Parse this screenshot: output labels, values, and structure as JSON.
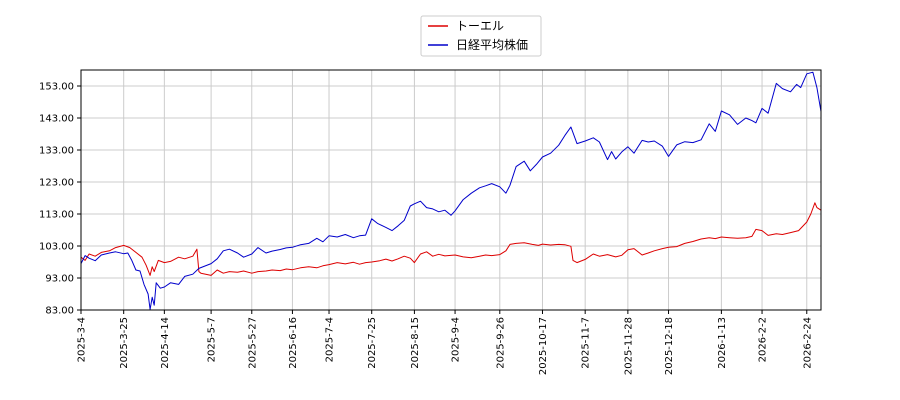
{
  "chart_data": {
    "type": "line",
    "title": "",
    "xlabel": "",
    "ylabel": "",
    "ylim": [
      83,
      158
    ],
    "yticks": [
      "83.00",
      "93.00",
      "103.00",
      "113.00",
      "123.00",
      "133.00",
      "143.00",
      "153.00"
    ],
    "xticks": [
      "2025-3-4",
      "2025-3-25",
      "2025-4-14",
      "2025-5-7",
      "2025-5-27",
      "2025-6-16",
      "2025-7-4",
      "2025-7-25",
      "2025-8-15",
      "2025-9-4",
      "2025-9-26",
      "2025-10-17",
      "2025-11-7",
      "2025-11-28",
      "2025-12-18",
      "2026-1-13",
      "2026-2-2",
      "2026-2-24"
    ],
    "x_range": [
      "2025-3-4",
      "2026-3-3"
    ],
    "grid": true,
    "legend_position": "top-center",
    "series": [
      {
        "name": "トーエル",
        "color": "#dd0000",
        "points": [
          [
            "2025-3-4",
            99.5
          ],
          [
            "2025-3-6",
            98.5
          ],
          [
            "2025-3-8",
            100.5
          ],
          [
            "2025-3-11",
            99.8
          ],
          [
            "2025-3-14",
            101.0
          ],
          [
            "2025-3-18",
            101.5
          ],
          [
            "2025-3-21",
            102.5
          ],
          [
            "2025-3-25",
            103.2
          ],
          [
            "2025-3-28",
            102.5
          ],
          [
            "2025-3-31",
            101.0
          ],
          [
            "2025-4-3",
            99.5
          ],
          [
            "2025-4-5",
            97.0
          ],
          [
            "2025-4-7",
            93.8
          ],
          [
            "2025-4-8",
            96.5
          ],
          [
            "2025-4-9",
            95.0
          ],
          [
            "2025-4-11",
            98.5
          ],
          [
            "2025-4-14",
            97.8
          ],
          [
            "2025-4-17",
            98.2
          ],
          [
            "2025-4-21",
            99.5
          ],
          [
            "2025-4-24",
            99.0
          ],
          [
            "2025-4-28",
            99.8
          ],
          [
            "2025-4-30",
            102.0
          ],
          [
            "2025-5-1",
            95.0
          ],
          [
            "2025-5-2",
            94.5
          ],
          [
            "2025-5-7",
            93.8
          ],
          [
            "2025-5-10",
            95.5
          ],
          [
            "2025-5-13",
            94.5
          ],
          [
            "2025-5-16",
            95.0
          ],
          [
            "2025-5-20",
            94.8
          ],
          [
            "2025-5-23",
            95.2
          ],
          [
            "2025-5-27",
            94.5
          ],
          [
            "2025-5-30",
            95.0
          ],
          [
            "2025-6-3",
            95.2
          ],
          [
            "2025-6-6",
            95.5
          ],
          [
            "2025-6-10",
            95.3
          ],
          [
            "2025-6-13",
            95.8
          ],
          [
            "2025-6-16",
            95.6
          ],
          [
            "2025-6-20",
            96.2
          ],
          [
            "2025-6-24",
            96.5
          ],
          [
            "2025-6-28",
            96.2
          ],
          [
            "2025-7-1",
            96.8
          ],
          [
            "2025-7-4",
            97.2
          ],
          [
            "2025-7-8",
            97.8
          ],
          [
            "2025-7-12",
            97.4
          ],
          [
            "2025-7-16",
            97.9
          ],
          [
            "2025-7-19",
            97.3
          ],
          [
            "2025-7-22",
            97.8
          ],
          [
            "2025-7-25",
            98.0
          ],
          [
            "2025-7-29",
            98.4
          ],
          [
            "2025-8-1",
            98.9
          ],
          [
            "2025-8-4",
            98.3
          ],
          [
            "2025-8-7",
            99.0
          ],
          [
            "2025-8-10",
            99.8
          ],
          [
            "2025-8-13",
            99.2
          ],
          [
            "2025-8-15",
            97.8
          ],
          [
            "2025-8-18",
            100.5
          ],
          [
            "2025-8-21",
            101.2
          ],
          [
            "2025-8-24",
            99.8
          ],
          [
            "2025-8-27",
            100.4
          ],
          [
            "2025-8-30",
            99.9
          ],
          [
            "2025-9-4",
            100.2
          ],
          [
            "2025-9-8",
            99.6
          ],
          [
            "2025-9-12",
            99.3
          ],
          [
            "2025-9-16",
            99.8
          ],
          [
            "2025-9-19",
            100.2
          ],
          [
            "2025-9-22",
            100.0
          ],
          [
            "2025-9-26",
            100.3
          ],
          [
            "2025-9-29",
            101.5
          ],
          [
            "2025-10-1",
            103.5
          ],
          [
            "2025-10-4",
            103.8
          ],
          [
            "2025-10-8",
            104.0
          ],
          [
            "2025-10-12",
            103.5
          ],
          [
            "2025-10-15",
            103.2
          ],
          [
            "2025-10-17",
            103.6
          ],
          [
            "2025-10-21",
            103.3
          ],
          [
            "2025-10-25",
            103.5
          ],
          [
            "2025-10-28",
            103.4
          ],
          [
            "2025-10-31",
            102.9
          ],
          [
            "2025-11-1",
            98.5
          ],
          [
            "2025-11-3",
            97.8
          ],
          [
            "2025-11-7",
            98.8
          ],
          [
            "2025-11-11",
            100.5
          ],
          [
            "2025-11-14",
            99.8
          ],
          [
            "2025-11-18",
            100.3
          ],
          [
            "2025-11-22",
            99.6
          ],
          [
            "2025-11-25",
            100.1
          ],
          [
            "2025-11-28",
            101.8
          ],
          [
            "2025-12-1",
            102.2
          ],
          [
            "2025-12-5",
            100.2
          ],
          [
            "2025-12-8",
            100.8
          ],
          [
            "2025-12-11",
            101.5
          ],
          [
            "2025-12-15",
            102.2
          ],
          [
            "2025-12-18",
            102.6
          ],
          [
            "2025-12-22",
            102.8
          ],
          [
            "2025-12-26",
            103.8
          ],
          [
            "2025-12-30",
            104.4
          ],
          [
            "2026-1-3",
            105.2
          ],
          [
            "2026-1-7",
            105.6
          ],
          [
            "2026-1-10",
            105.3
          ],
          [
            "2026-1-13",
            105.8
          ],
          [
            "2026-1-17",
            105.6
          ],
          [
            "2026-1-21",
            105.4
          ],
          [
            "2026-1-25",
            105.6
          ],
          [
            "2026-1-28",
            106.0
          ],
          [
            "2026-1-30",
            108.2
          ],
          [
            "2026-2-2",
            107.8
          ],
          [
            "2026-2-5",
            106.3
          ],
          [
            "2026-2-9",
            106.8
          ],
          [
            "2026-2-12",
            106.6
          ],
          [
            "2026-2-16",
            107.2
          ],
          [
            "2026-2-20",
            107.8
          ],
          [
            "2026-2-24",
            110.5
          ],
          [
            "2026-2-26",
            113.0
          ],
          [
            "2026-2-28",
            116.5
          ],
          [
            "2026-3-1",
            115.0
          ],
          [
            "2026-3-3",
            114.2
          ]
        ]
      },
      {
        "name": "日経平均株価",
        "color": "#0000cc",
        "points": [
          [
            "2025-3-4",
            97.5
          ],
          [
            "2025-3-6",
            100.0
          ],
          [
            "2025-3-8",
            99.2
          ],
          [
            "2025-3-11",
            98.4
          ],
          [
            "2025-3-14",
            100.2
          ],
          [
            "2025-3-18",
            100.8
          ],
          [
            "2025-3-21",
            101.2
          ],
          [
            "2025-3-25",
            100.6
          ],
          [
            "2025-3-27",
            100.8
          ],
          [
            "2025-3-29",
            98.5
          ],
          [
            "2025-3-31",
            95.5
          ],
          [
            "2025-4-2",
            95.2
          ],
          [
            "2025-4-4",
            91.0
          ],
          [
            "2025-4-6",
            88.0
          ],
          [
            "2025-4-7",
            83.2
          ],
          [
            "2025-4-8",
            87.0
          ],
          [
            "2025-4-9",
            84.5
          ],
          [
            "2025-4-10",
            91.5
          ],
          [
            "2025-4-12",
            89.8
          ],
          [
            "2025-4-14",
            90.2
          ],
          [
            "2025-4-17",
            91.5
          ],
          [
            "2025-4-21",
            91.0
          ],
          [
            "2025-4-24",
            93.5
          ],
          [
            "2025-4-28",
            94.2
          ],
          [
            "2025-5-1",
            96.0
          ],
          [
            "2025-5-7",
            97.5
          ],
          [
            "2025-5-10",
            99.0
          ],
          [
            "2025-5-13",
            101.5
          ],
          [
            "2025-5-16",
            102.0
          ],
          [
            "2025-5-20",
            100.8
          ],
          [
            "2025-5-23",
            99.5
          ],
          [
            "2025-5-27",
            100.5
          ],
          [
            "2025-5-30",
            102.5
          ],
          [
            "2025-6-3",
            100.8
          ],
          [
            "2025-6-6",
            101.4
          ],
          [
            "2025-6-10",
            101.9
          ],
          [
            "2025-6-13",
            102.4
          ],
          [
            "2025-6-16",
            102.6
          ],
          [
            "2025-6-20",
            103.4
          ],
          [
            "2025-6-24",
            103.8
          ],
          [
            "2025-6-28",
            105.4
          ],
          [
            "2025-7-1",
            104.3
          ],
          [
            "2025-7-4",
            106.2
          ],
          [
            "2025-7-8",
            105.8
          ],
          [
            "2025-7-12",
            106.6
          ],
          [
            "2025-7-16",
            105.6
          ],
          [
            "2025-7-19",
            106.2
          ],
          [
            "2025-7-22",
            106.4
          ],
          [
            "2025-7-25",
            111.5
          ],
          [
            "2025-7-28",
            110.0
          ],
          [
            "2025-8-1",
            108.8
          ],
          [
            "2025-8-4",
            107.8
          ],
          [
            "2025-8-7",
            109.3
          ],
          [
            "2025-8-10",
            111.0
          ],
          [
            "2025-8-13",
            115.5
          ],
          [
            "2025-8-15",
            116.2
          ],
          [
            "2025-8-18",
            117.0
          ],
          [
            "2025-8-21",
            115.0
          ],
          [
            "2025-8-24",
            114.6
          ],
          [
            "2025-8-27",
            113.7
          ],
          [
            "2025-8-30",
            114.2
          ],
          [
            "2025-9-2",
            112.6
          ],
          [
            "2025-9-4",
            114.0
          ],
          [
            "2025-9-8",
            117.5
          ],
          [
            "2025-9-12",
            119.5
          ],
          [
            "2025-9-16",
            121.2
          ],
          [
            "2025-9-19",
            121.8
          ],
          [
            "2025-9-22",
            122.5
          ],
          [
            "2025-9-26",
            121.5
          ],
          [
            "2025-9-29",
            119.5
          ],
          [
            "2025-10-1",
            122.0
          ],
          [
            "2025-10-4",
            127.8
          ],
          [
            "2025-10-8",
            129.5
          ],
          [
            "2025-10-11",
            126.5
          ],
          [
            "2025-10-14",
            128.5
          ],
          [
            "2025-10-17",
            130.8
          ],
          [
            "2025-10-21",
            132.0
          ],
          [
            "2025-10-25",
            134.5
          ],
          [
            "2025-10-28",
            137.5
          ],
          [
            "2025-10-31",
            140.2
          ],
          [
            "2025-11-3",
            135.0
          ],
          [
            "2025-11-7",
            135.8
          ],
          [
            "2025-11-11",
            136.8
          ],
          [
            "2025-11-14",
            135.5
          ],
          [
            "2025-11-18",
            130.0
          ],
          [
            "2025-11-20",
            132.5
          ],
          [
            "2025-11-22",
            130.2
          ],
          [
            "2025-11-25",
            132.4
          ],
          [
            "2025-11-28",
            134.0
          ],
          [
            "2025-12-1",
            132.0
          ],
          [
            "2025-12-5",
            136.0
          ],
          [
            "2025-12-8",
            135.5
          ],
          [
            "2025-12-11",
            135.8
          ],
          [
            "2025-12-15",
            134.2
          ],
          [
            "2025-12-18",
            131.0
          ],
          [
            "2025-12-22",
            134.6
          ],
          [
            "2025-12-26",
            135.6
          ],
          [
            "2025-12-30",
            135.3
          ],
          [
            "2026-1-3",
            136.2
          ],
          [
            "2026-1-7",
            141.2
          ],
          [
            "2026-1-10",
            138.8
          ],
          [
            "2026-1-13",
            145.2
          ],
          [
            "2026-1-17",
            144.0
          ],
          [
            "2026-1-21",
            141.0
          ],
          [
            "2026-1-25",
            143.0
          ],
          [
            "2026-1-28",
            142.2
          ],
          [
            "2026-1-30",
            141.5
          ],
          [
            "2026-2-2",
            146.0
          ],
          [
            "2026-2-5",
            144.5
          ],
          [
            "2026-2-9",
            153.8
          ],
          [
            "2026-2-12",
            152.2
          ],
          [
            "2026-2-16",
            151.2
          ],
          [
            "2026-2-19",
            153.5
          ],
          [
            "2026-2-21",
            152.5
          ],
          [
            "2026-2-24",
            156.8
          ],
          [
            "2026-2-27",
            157.3
          ],
          [
            "2026-3-1",
            152.5
          ],
          [
            "2026-3-3",
            145.0
          ]
        ]
      }
    ]
  }
}
